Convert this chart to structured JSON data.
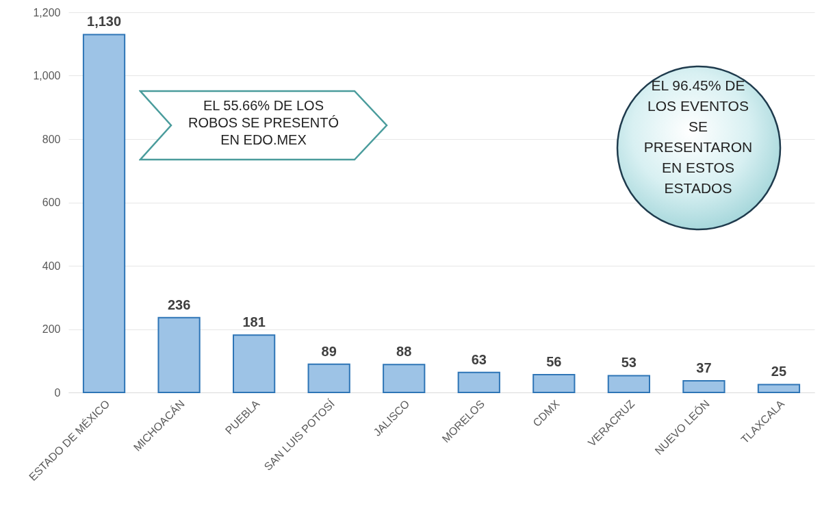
{
  "chart_data": {
    "type": "bar",
    "categories": [
      "ESTADO DE MÉXICO",
      "MICHOACÁN",
      "PUEBLA",
      "SAN LUIS POTOSÍ",
      "JALISCO",
      "MORELOS",
      "CDMX",
      "VERACRUZ",
      "NUEVO LEÓN",
      "TLAXCALA"
    ],
    "values": [
      1130,
      236,
      181,
      89,
      88,
      63,
      56,
      53,
      37,
      25
    ],
    "color": "#9dc3e6",
    "ylim": [
      0,
      1200
    ],
    "yticks": [
      0,
      {
        "value": 200,
        "label": "200"
      },
      {
        "value": 400,
        "label": "400"
      },
      {
        "value": 600,
        "label": "600"
      },
      {
        "value": 800,
        "label": "800"
      },
      {
        "value": 1000,
        "label": "1,000"
      },
      {
        "value": 1200,
        "label": "1,200"
      }
    ],
    "grid": "y",
    "value_labels": [
      "1,130",
      "236",
      "181",
      "89",
      "88",
      "63",
      "56",
      "53",
      "37",
      "25"
    ],
    "annotations": [
      "EL 55.66% DE LOS ROBOS SE PRESENTÓ EN EDO.MEX",
      "EL 96.45% DE LOS EVENTOS SE PRESENTARON EN ESTOS ESTADOS"
    ]
  }
}
